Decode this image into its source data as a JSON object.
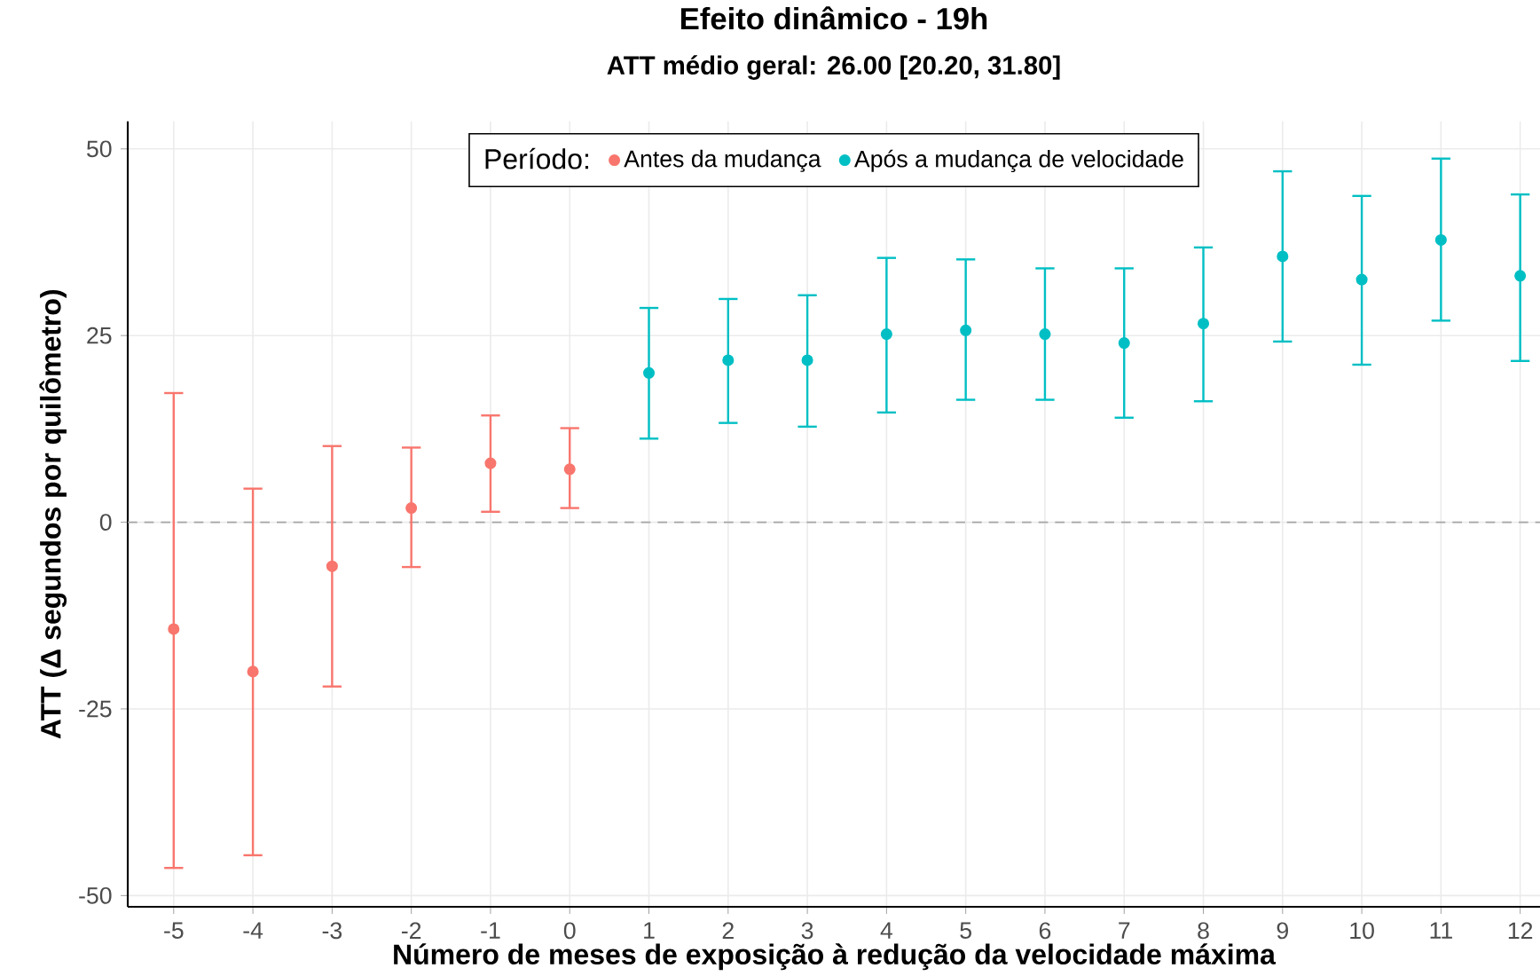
{
  "chart_data": {
    "type": "scatter",
    "title": "Efeito dinâmico - 19h",
    "subtitle": "ATT médio geral: 26.00 [20.20, 31.80]",
    "xlabel": "Número de meses de exposição à redução da velocidade máxima",
    "ylabel": "ATT (Δ segundos por quilômetro)",
    "legend_title": "Período:",
    "series": [
      {
        "name": "Antes da mudança",
        "color": "#f8766d",
        "x": [
          -5,
          -4,
          -3,
          -2,
          -1,
          0
        ],
        "values": [
          -14.3,
          -20,
          -5.9,
          1.9,
          7.9,
          7.1
        ],
        "errors": [
          [
            -46.3,
            17.3
          ],
          [
            -44.6,
            4.5
          ],
          [
            -22,
            10.2
          ],
          [
            -6,
            10
          ],
          [
            1.4,
            14.3
          ],
          [
            1.9,
            12.6
          ]
        ]
      },
      {
        "name": "Após a mudança de velocidade",
        "color": "#00bfc4",
        "x": [
          1,
          2,
          3,
          4,
          5,
          6,
          7,
          8,
          9,
          10,
          11,
          12
        ],
        "values": [
          20,
          21.7,
          21.7,
          25.2,
          25.7,
          25.2,
          24,
          26.6,
          35.6,
          32.5,
          37.8,
          33
        ],
        "errors": [
          [
            11.2,
            28.7
          ],
          [
            13.3,
            29.9
          ],
          [
            12.8,
            30.4
          ],
          [
            14.7,
            35.4
          ],
          [
            16.4,
            35.2
          ],
          [
            16.4,
            34
          ],
          [
            14,
            34
          ],
          [
            16.2,
            36.8
          ],
          [
            24.2,
            47
          ],
          [
            21.1,
            43.7
          ],
          [
            27,
            48.7
          ],
          [
            21.6,
            43.9
          ]
        ]
      }
    ],
    "xlim": [
      -5.58,
      12.25
    ],
    "ylim": [
      -51.5,
      53.7
    ],
    "xticks": [
      -5,
      -4,
      -3,
      -2,
      -1,
      0,
      1,
      2,
      3,
      4,
      5,
      6,
      7,
      8,
      9,
      10,
      11,
      12
    ],
    "yticks": [
      -50,
      -25,
      0,
      25,
      50
    ],
    "ref_lines": [
      {
        "axis": "y",
        "value": 0,
        "color": "#a6a6a6",
        "line_style": "dashed"
      }
    ],
    "grid": true,
    "legend": "top",
    "marker": "circle"
  }
}
